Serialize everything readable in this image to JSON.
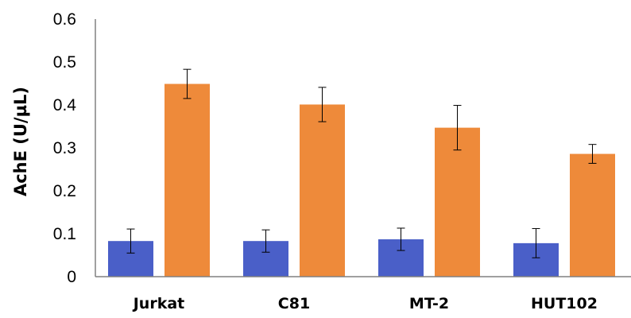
{
  "chart_data": {
    "type": "bar",
    "title": "",
    "xlabel": "",
    "ylabel": "AchE (U/µL)",
    "categories": [
      "Jurkat",
      "C81",
      "MT-2",
      "HUT102"
    ],
    "series": [
      {
        "color": "#4a5fc8",
        "values": [
          0.083,
          0.083,
          0.087,
          0.078
        ],
        "errors": [
          0.028,
          0.026,
          0.026,
          0.034
        ]
      },
      {
        "color": "#ee8a3a",
        "values": [
          0.449,
          0.401,
          0.347,
          0.286
        ],
        "errors": [
          0.034,
          0.04,
          0.052,
          0.022
        ]
      }
    ],
    "ylim": [
      0,
      0.6
    ],
    "yticks": [
      "0",
      "0.1",
      "0.2",
      "0.3",
      "0.4",
      "0.5",
      "0.6"
    ],
    "grid": false,
    "legend": "none"
  }
}
